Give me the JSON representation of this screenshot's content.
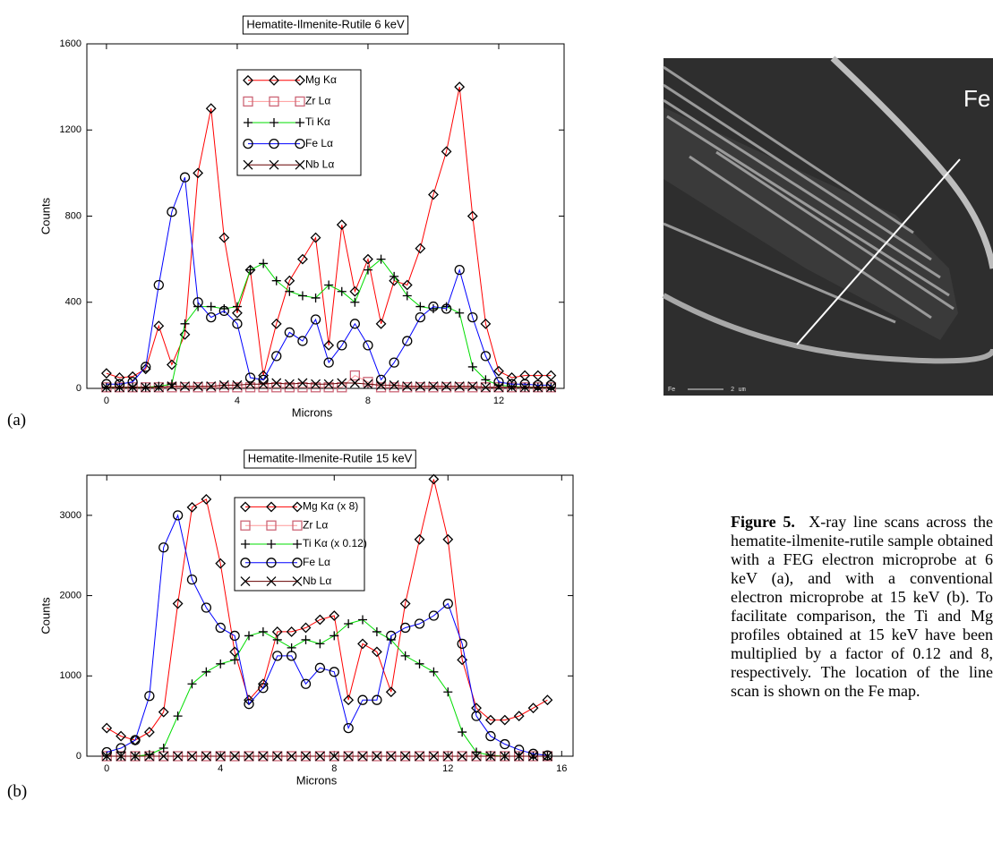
{
  "chart_data": [
    {
      "type": "line",
      "title": "Hematite-Ilmenite-Rutile 6 keV",
      "x_label": "Microns",
      "y_label": "Counts",
      "xlim": [
        -0.6,
        14
      ],
      "xticks": [
        0,
        4,
        8,
        12
      ],
      "ylim": [
        0,
        1600
      ],
      "yticks": [
        0,
        400,
        800,
        1200,
        1600
      ],
      "x": [
        0,
        0.4,
        0.8,
        1.2,
        1.6,
        2.0,
        2.4,
        2.8,
        3.2,
        3.6,
        4.0,
        4.4,
        4.8,
        5.2,
        5.6,
        6.0,
        6.4,
        6.8,
        7.2,
        7.6,
        8.0,
        8.4,
        8.8,
        9.2,
        9.6,
        10.0,
        10.4,
        10.8,
        11.2,
        11.6,
        12.0,
        12.4,
        12.8,
        13.2,
        13.6
      ],
      "series": [
        {
          "name": "Mg Kα",
          "color": "#ff0000",
          "marker": "diamond",
          "marker_color": "#000000",
          "values": [
            70,
            50,
            55,
            90,
            290,
            110,
            250,
            1000,
            1300,
            700,
            350,
            550,
            60,
            300,
            500,
            600,
            700,
            200,
            760,
            450,
            600,
            300,
            500,
            480,
            650,
            900,
            1100,
            1400,
            800,
            300,
            80,
            50,
            60,
            60,
            60
          ]
        },
        {
          "name": "Zr Lα",
          "color": "#ff9999",
          "marker": "square",
          "marker_color": "#cc6677",
          "values": [
            5,
            5,
            5,
            5,
            5,
            5,
            5,
            5,
            5,
            5,
            5,
            5,
            5,
            5,
            5,
            5,
            5,
            5,
            5,
            60,
            30,
            5,
            5,
            5,
            5,
            5,
            5,
            5,
            5,
            5,
            5,
            5,
            5,
            5,
            5
          ]
        },
        {
          "name": "Ti Kα",
          "color": "#00dd00",
          "marker": "plus",
          "marker_color": "#000000",
          "values": [
            5,
            5,
            5,
            5,
            10,
            20,
            300,
            380,
            380,
            370,
            380,
            550,
            580,
            500,
            450,
            430,
            420,
            480,
            450,
            400,
            550,
            600,
            520,
            430,
            380,
            370,
            380,
            350,
            100,
            40,
            15,
            10,
            5,
            5,
            5
          ]
        },
        {
          "name": "Fe Lα",
          "color": "#0000ff",
          "marker": "circle",
          "marker_color": "#000000",
          "values": [
            20,
            20,
            30,
            100,
            480,
            820,
            980,
            400,
            330,
            360,
            300,
            50,
            40,
            150,
            260,
            220,
            320,
            120,
            200,
            300,
            200,
            40,
            120,
            220,
            330,
            380,
            370,
            550,
            330,
            150,
            30,
            20,
            20,
            15,
            15
          ]
        },
        {
          "name": "Nb Lα",
          "color": "#660000",
          "marker": "cross",
          "marker_color": "#000000",
          "values": [
            5,
            5,
            5,
            5,
            5,
            10,
            10,
            10,
            10,
            15,
            15,
            20,
            20,
            25,
            20,
            25,
            20,
            20,
            25,
            25,
            20,
            15,
            15,
            10,
            10,
            10,
            10,
            10,
            10,
            5,
            5,
            5,
            5,
            5,
            5
          ]
        }
      ]
    },
    {
      "type": "line",
      "title": "Hematite-Ilmenite-Rutile 15 keV",
      "x_label": "Microns",
      "y_label": "Counts",
      "xlim": [
        -0.7,
        16.4
      ],
      "xticks": [
        0,
        4,
        8,
        12,
        16
      ],
      "ylim": [
        0,
        3500
      ],
      "yticks": [
        0,
        1000,
        2000,
        3000
      ],
      "x": [
        0,
        0.5,
        1,
        1.5,
        2,
        2.5,
        3,
        3.5,
        4,
        4.5,
        5,
        5.5,
        6,
        6.5,
        7,
        7.5,
        8,
        8.5,
        9,
        9.5,
        10,
        10.5,
        11,
        11.5,
        12,
        12.5,
        13,
        13.5,
        14,
        14.5,
        15,
        15.5
      ],
      "series": [
        {
          "name": "Mg Kα (x 8)",
          "color": "#ff0000",
          "marker": "diamond",
          "marker_color": "#000000",
          "values": [
            350,
            250,
            200,
            300,
            550,
            1900,
            3100,
            3200,
            2400,
            1300,
            700,
            900,
            1550,
            1550,
            1600,
            1700,
            1750,
            700,
            1400,
            1300,
            800,
            1900,
            2700,
            3450,
            2700,
            1200,
            600,
            450,
            450,
            500,
            600,
            700
          ]
        },
        {
          "name": "Zr Lα",
          "color": "#ff9999",
          "marker": "square",
          "marker_color": "#cc6677",
          "values": [
            0,
            0,
            0,
            0,
            0,
            0,
            0,
            0,
            0,
            0,
            0,
            0,
            0,
            0,
            0,
            0,
            0,
            0,
            0,
            0,
            0,
            0,
            0,
            0,
            0,
            0,
            0,
            0,
            0,
            0,
            0,
            0
          ]
        },
        {
          "name": "Ti Kα (x 0.12)",
          "color": "#00dd00",
          "marker": "plus",
          "marker_color": "#000000",
          "values": [
            0,
            0,
            0,
            20,
            100,
            500,
            900,
            1050,
            1150,
            1200,
            1500,
            1550,
            1450,
            1350,
            1450,
            1400,
            1500,
            1650,
            1700,
            1550,
            1450,
            1250,
            1150,
            1050,
            800,
            300,
            50,
            10,
            0,
            0,
            0,
            0
          ]
        },
        {
          "name": "Fe Lα",
          "color": "#0000ff",
          "marker": "circle",
          "marker_color": "#000000",
          "values": [
            50,
            100,
            200,
            750,
            2600,
            3000,
            2200,
            1850,
            1600,
            1500,
            650,
            850,
            1250,
            1250,
            900,
            1100,
            1050,
            350,
            700,
            700,
            1500,
            1600,
            1650,
            1750,
            1900,
            1400,
            500,
            250,
            150,
            80,
            30,
            10
          ]
        },
        {
          "name": "Nb Lα",
          "color": "#660000",
          "marker": "cross",
          "marker_color": "#000000",
          "values": [
            0,
            0,
            0,
            0,
            0,
            0,
            0,
            0,
            0,
            0,
            0,
            0,
            0,
            0,
            0,
            0,
            0,
            0,
            0,
            0,
            0,
            0,
            0,
            0,
            0,
            0,
            0,
            0,
            0,
            0,
            0,
            0
          ]
        }
      ]
    }
  ],
  "panel_labels": [
    "(a)",
    "(b)"
  ],
  "image": {
    "label": "Fe",
    "scale_label": "Fe",
    "scale_text": "2 um"
  },
  "caption": {
    "label": "Figure 5.",
    "text": "X-ray line scans across the hematite-ilmenite-rutile sample obtained with a FEG electron microprobe at 6 keV (a), and with a conventional electron microprobe at 15 keV (b). To facilitate comparison, the Ti and Mg profiles obtained at 15 keV have been multiplied by a factor of 0.12 and 8, respectively. The location of the line scan is shown on the Fe map."
  }
}
